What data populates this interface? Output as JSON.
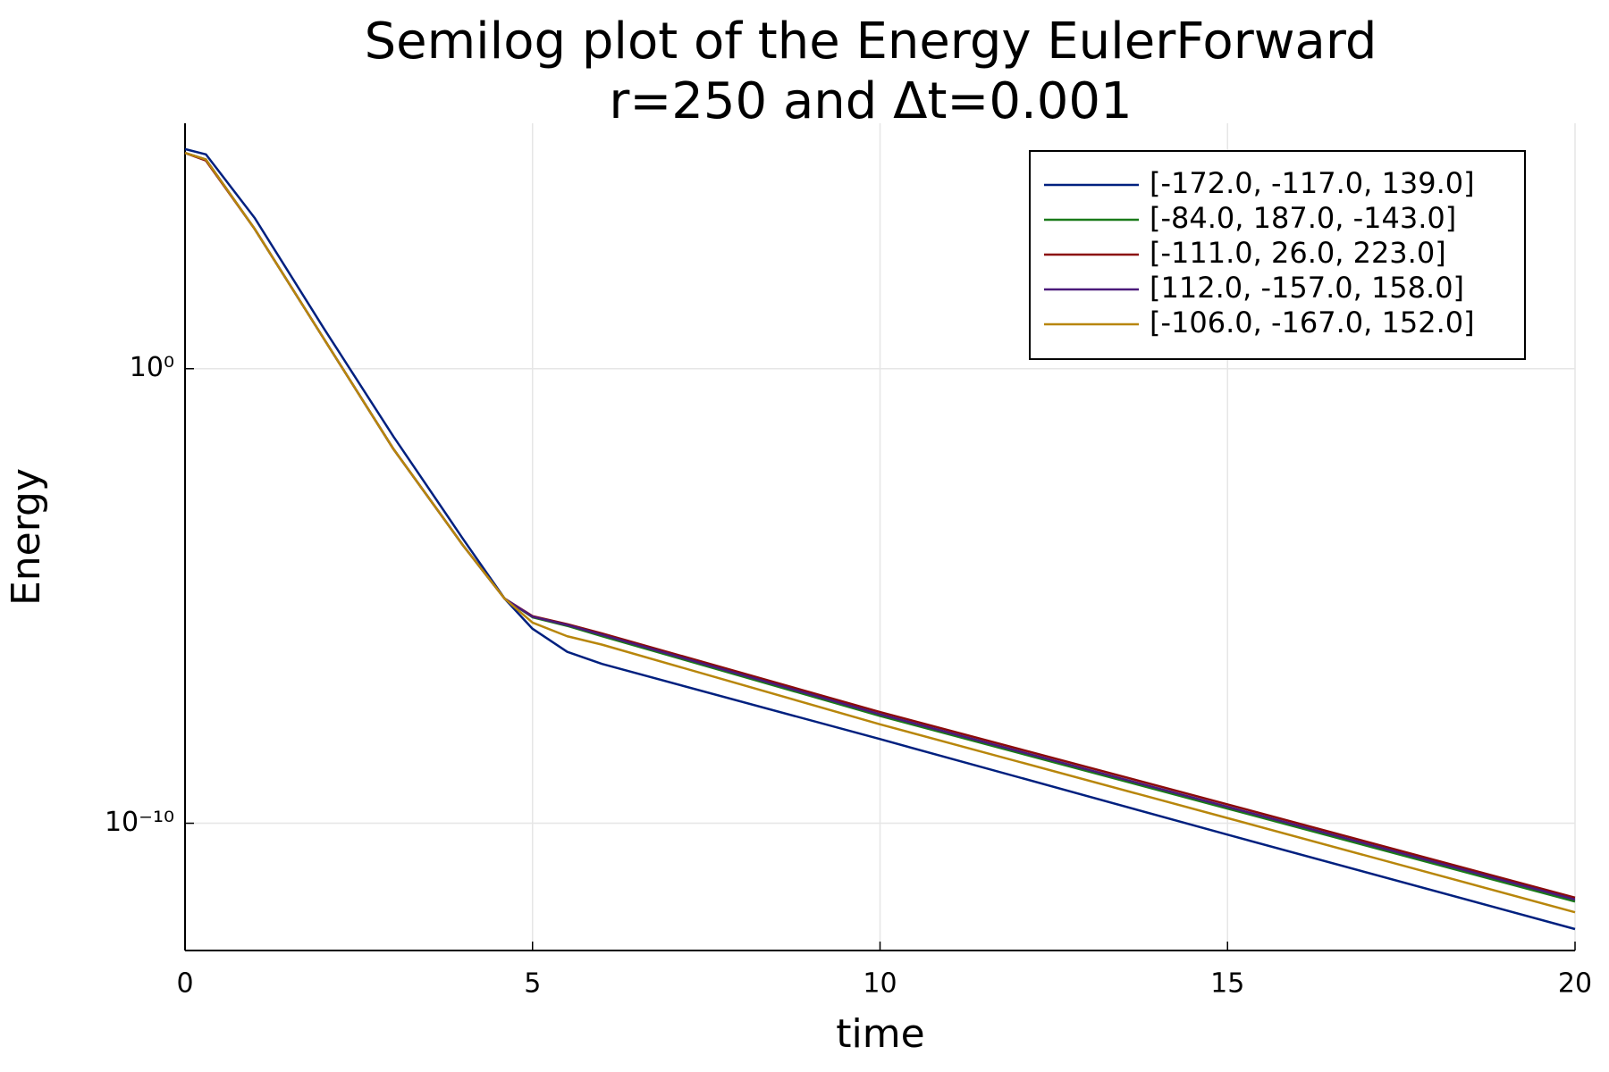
{
  "chart_data": {
    "type": "line",
    "title": [
      "Semilog plot of the Energy EulerForward",
      "r=250 and Δt=0.001"
    ],
    "x_label": "time",
    "y_label": "Energy",
    "yscale": "log",
    "grid": true,
    "legend": "top-right",
    "x": [
      0,
      0.3,
      1,
      2,
      3,
      4,
      4.6,
      5,
      5.5,
      6,
      10,
      15,
      20
    ],
    "xlim": [
      0,
      20
    ],
    "xticks": [
      0,
      5,
      10,
      15,
      20
    ],
    "ylim": [
      1.585e-13,
      251189
    ],
    "yticks": [
      {
        "value": 1e-10,
        "label": "10⁻¹⁰"
      },
      {
        "value": 1,
        "label": "10⁰"
      }
    ],
    "series": [
      {
        "name": "[-172.0, -117.0, 139.0]",
        "color": "#00207f",
        "values": [
          68000,
          52000,
          2100,
          7.6,
          0.032,
          0.00018,
          8.7e-06,
          1.9e-06,
          5.9e-07,
          3.2e-07,
          7.1e-09,
          5.6e-11,
          4.7e-13
        ]
      },
      {
        "name": "[-84.0, 187.0, -143.0]",
        "color": "#1a7a1a",
        "values": [
          56000,
          40000,
          1200,
          4.5,
          0.017,
          0.00013,
          8.7e-06,
          3.4e-06,
          2.2e-06,
          1.3e-06,
          2.3e-08,
          2.1e-10,
          1.9e-12
        ]
      },
      {
        "name": "[-111.0, 26.0, 223.0]",
        "color": "#8b0a0a",
        "values": [
          56000,
          38000,
          1200,
          4.5,
          0.017,
          0.00013,
          8.7e-06,
          3.6e-06,
          2.4e-06,
          1.5e-06,
          2.8e-08,
          2.6e-10,
          2.3e-12
        ]
      },
      {
        "name": "[112.0, -157.0, 158.0]",
        "color": "#4b1a7a",
        "values": [
          56000,
          40000,
          1200,
          4.5,
          0.017,
          0.00013,
          8.7e-06,
          3.5e-06,
          2.3e-06,
          1.4e-06,
          2.5e-08,
          2.3e-10,
          2.1e-12
        ]
      },
      {
        "name": "[-106.0, -167.0, 152.0]",
        "color": "#b8860b",
        "values": [
          56000,
          40000,
          1200,
          4.5,
          0.017,
          0.00013,
          8.7e-06,
          2.6e-06,
          1.3e-06,
          8.5e-07,
          1.5e-08,
          1.3e-10,
          1.1e-12
        ]
      }
    ]
  }
}
